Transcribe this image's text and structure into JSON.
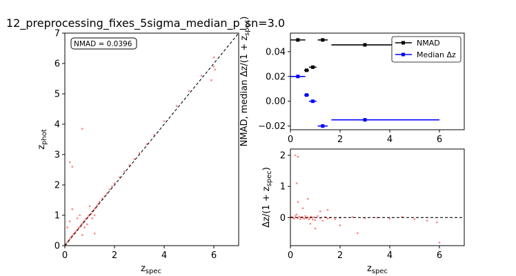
{
  "figure": {
    "title": "12_preprocessing_fixes_5sigma_median_p_sn=3.0"
  },
  "chart_data": [
    {
      "type": "scatter",
      "id": "main",
      "xlabel": "z_spec",
      "ylabel": "z_phot",
      "xlim": [
        0,
        7
      ],
      "ylim": [
        0,
        7
      ],
      "xticks": [
        0,
        2,
        4,
        6
      ],
      "yticks": [
        0,
        1,
        2,
        3,
        4,
        5,
        6,
        7
      ],
      "annotation": "NMAD = 0.0396",
      "reference_line": {
        "x": [
          0,
          7
        ],
        "y": [
          0,
          7
        ],
        "style": "dashed",
        "color": "#000000"
      },
      "points": {
        "color": "#ff0000",
        "x": [
          0.05,
          0.1,
          0.15,
          0.2,
          0.25,
          0.3,
          0.35,
          0.4,
          0.45,
          0.5,
          0.55,
          0.6,
          0.65,
          0.7,
          0.75,
          0.8,
          0.85,
          0.9,
          0.95,
          1.0,
          1.05,
          1.1,
          1.15,
          1.2,
          1.25,
          1.3,
          1.35,
          1.4,
          1.5,
          1.6,
          1.7,
          1.8,
          1.9,
          2.0,
          2.2,
          2.4,
          2.6,
          2.8,
          3.0,
          3.3,
          3.6,
          4.0,
          4.5,
          5.0,
          5.5,
          6.0,
          0.2,
          0.3,
          0.5,
          0.6,
          0.8,
          1.0,
          1.2,
          0.1,
          0.2,
          0.3,
          0.7,
          0.9,
          1.1,
          5.9,
          6.0,
          6.05,
          0.7,
          1.2
        ],
        "y": [
          0.05,
          0.12,
          0.16,
          0.22,
          0.28,
          0.33,
          0.38,
          0.42,
          0.48,
          0.52,
          0.58,
          0.62,
          0.68,
          0.72,
          0.78,
          0.82,
          0.88,
          0.92,
          0.98,
          1.02,
          1.05,
          1.12,
          1.15,
          1.22,
          1.25,
          1.32,
          1.38,
          1.45,
          1.55,
          1.62,
          1.72,
          1.85,
          1.95,
          2.05,
          2.25,
          2.45,
          2.65,
          2.85,
          3.05,
          3.35,
          3.65,
          4.1,
          4.6,
          5.1,
          5.6,
          5.9,
          2.75,
          2.6,
          0.9,
          1.0,
          0.6,
          1.3,
          1.0,
          0.6,
          0.8,
          1.2,
          0.35,
          0.7,
          0.9,
          5.45,
          6.2,
          5.8,
          3.85,
          0.4
        ]
      }
    },
    {
      "type": "errorbar",
      "id": "nmad",
      "ylabel": "NMAD, median Δz/(1 + z_spec)",
      "xlim": [
        0,
        7
      ],
      "ylim": [
        -0.023,
        0.055
      ],
      "xticks": [
        0,
        2,
        4,
        6
      ],
      "yticks": [
        -0.02,
        0.0,
        0.02,
        0.04
      ],
      "ytick_labels": [
        "−0.02",
        "0.00",
        "0.02",
        "0.04"
      ],
      "legend": {
        "placement": "top-right",
        "entries": [
          "NMAD",
          "Median Δz"
        ]
      },
      "series": [
        {
          "name": "NMAD",
          "color": "#000000",
          "x": [
            0.3,
            0.65,
            0.9,
            1.3,
            3.0
          ],
          "y": [
            0.0495,
            0.025,
            0.0275,
            0.0495,
            0.0455
          ],
          "xerr_low": [
            0.3,
            0.1,
            0.15,
            0.2,
            1.35
          ],
          "xerr_high": [
            0.3,
            0.1,
            0.15,
            0.2,
            3.0
          ]
        },
        {
          "name": "Median Δz",
          "color": "#0000ff",
          "x": [
            0.3,
            0.65,
            0.9,
            1.3,
            3.0
          ],
          "y": [
            0.02,
            0.005,
            0.0,
            -0.02,
            -0.015
          ],
          "xerr_low": [
            0.3,
            0.1,
            0.15,
            0.2,
            1.35
          ],
          "xerr_high": [
            0.3,
            0.1,
            0.15,
            0.2,
            3.0
          ]
        }
      ]
    },
    {
      "type": "scatter",
      "id": "residual",
      "xlabel": "z_spec",
      "ylabel": "Δz/(1 + z_spec)",
      "xlim": [
        0,
        7
      ],
      "ylim": [
        -0.9,
        2.2
      ],
      "xticks": [
        0,
        2,
        4,
        6
      ],
      "yticks": [
        0,
        1,
        2
      ],
      "reference_line": {
        "y": 0,
        "style": "dashed",
        "color": "#000000"
      },
      "points": {
        "color": "#ff0000",
        "x": [
          0.05,
          0.1,
          0.15,
          0.2,
          0.25,
          0.3,
          0.35,
          0.4,
          0.45,
          0.5,
          0.55,
          0.6,
          0.65,
          0.7,
          0.75,
          0.8,
          0.85,
          0.9,
          0.95,
          1.0,
          1.1,
          1.2,
          1.3,
          1.4,
          1.5,
          1.6,
          1.8,
          2.0,
          2.5,
          3.0,
          3.5,
          4.0,
          4.5,
          5.0,
          5.5,
          5.9,
          6.0,
          0.2,
          0.3,
          0.25,
          0.3,
          0.5,
          0.7,
          1.0,
          1.2,
          2.7,
          2.0,
          1.5,
          0.8
        ],
        "y": [
          0.02,
          0.0,
          -0.03,
          0.05,
          0.1,
          -0.02,
          0.03,
          -0.05,
          0.02,
          0.0,
          -0.04,
          0.05,
          -0.02,
          0.01,
          -0.05,
          0.0,
          0.03,
          -0.06,
          0.01,
          -0.08,
          0.05,
          -0.02,
          -0.1,
          0.02,
          -0.03,
          0.0,
          -0.05,
          0.0,
          0.02,
          -0.02,
          0.0,
          -0.03,
          0.02,
          -0.05,
          -0.1,
          -0.15,
          -0.8,
          2.0,
          0.5,
          1.1,
          1.95,
          0.3,
          0.6,
          -0.35,
          0.2,
          -0.5,
          -0.25,
          0.25,
          -0.2
        ]
      }
    }
  ]
}
